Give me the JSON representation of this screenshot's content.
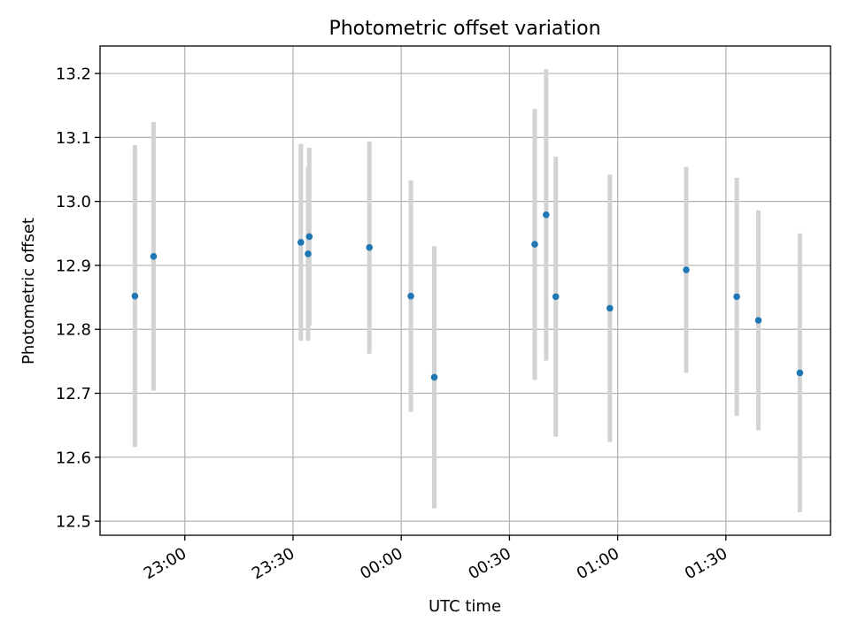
{
  "chart_data": {
    "type": "scatter",
    "title": "Photometric offset variation",
    "xlabel": "UTC time",
    "ylabel": "Photometric offset",
    "grid": true,
    "x_tick_labels": [
      "23:00",
      "23:30",
      "00:00",
      "00:30",
      "01:00",
      "01:30"
    ],
    "y_tick_labels": [
      "12.5",
      "12.6",
      "12.7",
      "12.8",
      "12.9",
      "13.0",
      "13.1",
      "13.2"
    ],
    "ylim": [
      12.478,
      13.243
    ],
    "xlim": [
      "22:36:30",
      "01:59:00"
    ],
    "x_ticks": [
      "23:00",
      "23:30",
      "00:00",
      "00:30",
      "01:00",
      "01:30"
    ],
    "y_ticks": [
      12.5,
      12.6,
      12.7,
      12.8,
      12.9,
      13.0,
      13.1,
      13.2
    ],
    "colors": {
      "point": "#1f77b4",
      "errorbar": "#d3d3d3"
    },
    "points": [
      {
        "x": "22:46:10",
        "y": 12.852,
        "yerr": 0.236
      },
      {
        "x": "22:51:20",
        "y": 12.914,
        "yerr": 0.21
      },
      {
        "x": "23:32:10",
        "y": 12.936,
        "yerr": 0.154
      },
      {
        "x": "23:34:10",
        "y": 12.918,
        "yerr": 0.136
      },
      {
        "x": "23:34:30",
        "y": 12.945,
        "yerr": 0.139
      },
      {
        "x": "23:51:10",
        "y": 12.928,
        "yerr": 0.166
      },
      {
        "x": "00:02:40",
        "y": 12.852,
        "yerr": 0.181
      },
      {
        "x": "00:09:10",
        "y": 12.725,
        "yerr": 0.205
      },
      {
        "x": "00:37:00",
        "y": 12.933,
        "yerr": 0.212
      },
      {
        "x": "00:40:10",
        "y": 12.979,
        "yerr": 0.228
      },
      {
        "x": "00:42:50",
        "y": 12.851,
        "yerr": 0.219
      },
      {
        "x": "00:57:50",
        "y": 12.833,
        "yerr": 0.209
      },
      {
        "x": "01:19:00",
        "y": 12.893,
        "yerr": 0.161
      },
      {
        "x": "01:33:00",
        "y": 12.851,
        "yerr": 0.186
      },
      {
        "x": "01:39:00",
        "y": 12.814,
        "yerr": 0.172
      },
      {
        "x": "01:50:30",
        "y": 12.732,
        "yerr": 0.218
      }
    ]
  }
}
